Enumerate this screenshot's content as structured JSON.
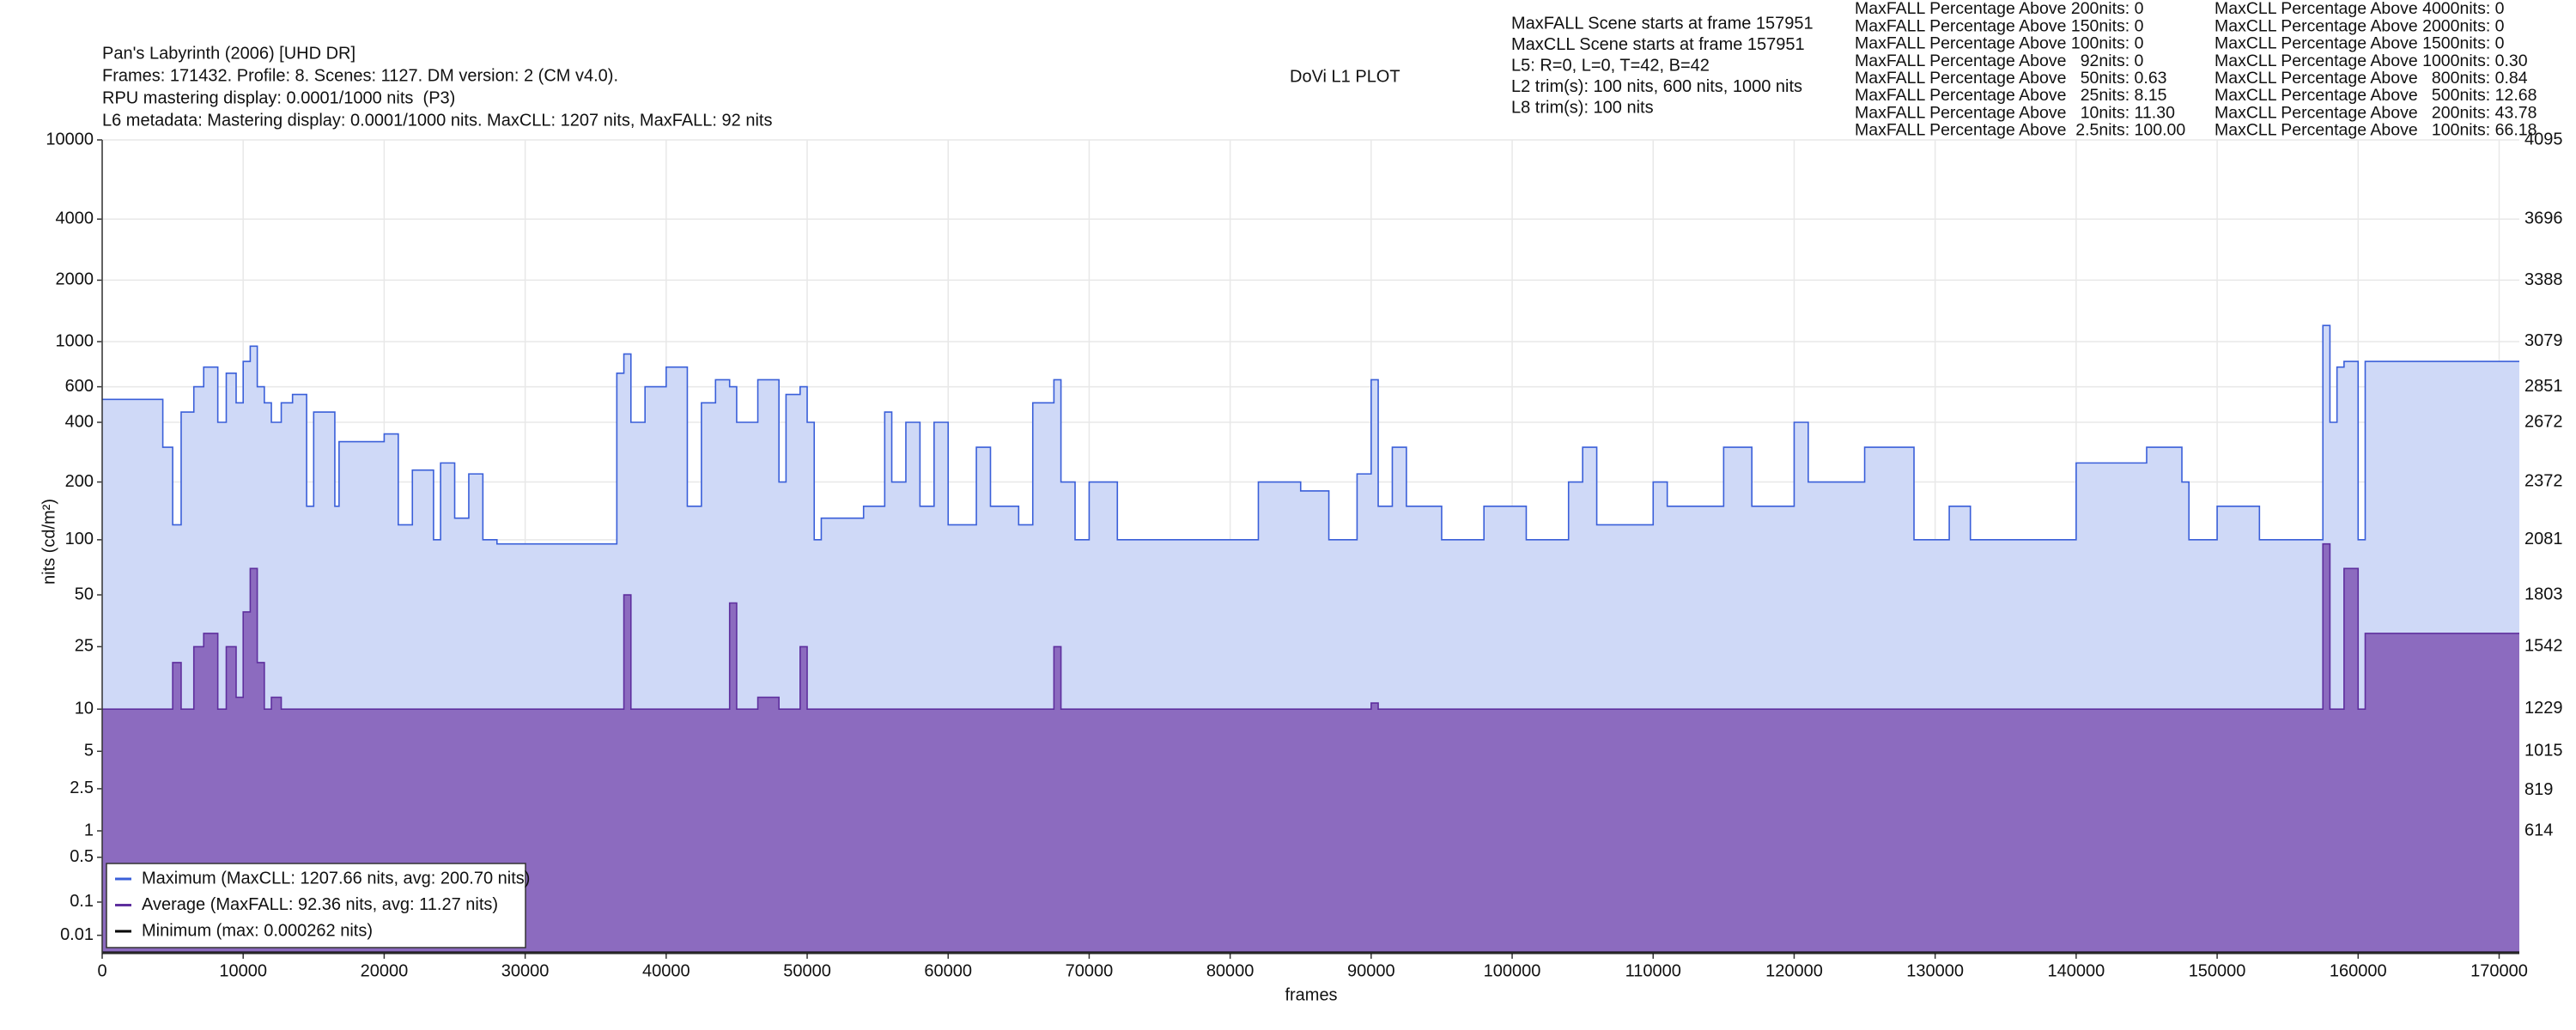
{
  "chart_data": {
    "type": "line",
    "step": "post",
    "yscale": "pq",
    "grid": true,
    "title": "DoVi L1 PLOT",
    "header_lines": [
      "Pan's Labyrinth (2006) [UHD DR]",
      "Frames: 171432. Profile: 8. Scenes: 1127. DM version: 2 (CM v4.0).",
      "RPU mastering display: 0.0001/1000 nits  (P3)",
      "L6 metadata: Mastering display: 0.0001/1000 nits. MaxCLL: 1207 nits, MaxFALL: 92 nits"
    ],
    "info_lines": [
      "MaxFALL Scene starts at frame 157951",
      "MaxCLL Scene starts at frame 157951",
      "L5: R=0, L=0, T=42, B=42",
      "L2 trim(s): 100 nits, 600 nits, 1000 nits",
      "L8 trim(s): 100 nits"
    ],
    "maxfall_stats": [
      "MaxFALL Percentage Above 200nits: 0",
      "MaxFALL Percentage Above 150nits: 0",
      "MaxFALL Percentage Above 100nits: 0",
      "MaxFALL Percentage Above   92nits: 0",
      "MaxFALL Percentage Above   50nits: 0.63",
      "MaxFALL Percentage Above   25nits: 8.15",
      "MaxFALL Percentage Above   10nits: 11.30",
      "MaxFALL Percentage Above  2.5nits: 100.00"
    ],
    "maxcll_stats": [
      "MaxCLL Percentage Above 4000nits: 0",
      "MaxCLL Percentage Above 2000nits: 0",
      "MaxCLL Percentage Above 1500nits: 0",
      "MaxCLL Percentage Above 1000nits: 0.30",
      "MaxCLL Percentage Above   800nits: 0.84",
      "MaxCLL Percentage Above   500nits: 12.68",
      "MaxCLL Percentage Above   200nits: 43.78",
      "MaxCLL Percentage Above   100nits: 66.18"
    ],
    "x_label": "frames",
    "y_label": "nits (cd/m²)",
    "xlim": [
      0,
      171432
    ],
    "xticks": [
      0,
      10000,
      20000,
      30000,
      40000,
      50000,
      60000,
      70000,
      80000,
      90000,
      100000,
      110000,
      120000,
      130000,
      140000,
      150000,
      160000,
      170000
    ],
    "ylim": [
      0,
      10000
    ],
    "yticks": [
      0.01,
      0.1,
      0.5,
      1,
      2.5,
      5,
      10,
      25,
      50,
      100,
      200,
      400,
      600,
      1000,
      2000,
      4000,
      10000
    ],
    "y2lim": [
      0,
      4095
    ],
    "y2ticks": [
      614,
      819,
      1015,
      1229,
      1542,
      1803,
      2081,
      2372,
      2672,
      2851,
      3079,
      3388,
      3696,
      4095
    ],
    "x": [
      0,
      4300,
      5000,
      5600,
      6500,
      7200,
      8200,
      8800,
      9500,
      10000,
      10500,
      11000,
      11500,
      12000,
      12700,
      13500,
      14500,
      15000,
      16500,
      16800,
      20000,
      21000,
      22000,
      23500,
      24000,
      25000,
      26000,
      27000,
      28000,
      36500,
      37000,
      37500,
      38500,
      40000,
      41500,
      42500,
      43500,
      44500,
      45000,
      46500,
      48000,
      48500,
      49500,
      50000,
      50500,
      51000,
      54000,
      55500,
      56000,
      57000,
      58000,
      59000,
      60000,
      62000,
      63000,
      65000,
      66000,
      67500,
      68000,
      69000,
      70000,
      72000,
      81000,
      82000,
      85000,
      87000,
      89000,
      90000,
      90500,
      91500,
      92500,
      95000,
      98000,
      101000,
      104000,
      105000,
      106000,
      110000,
      111000,
      115000,
      117000,
      120000,
      121000,
      125000,
      128500,
      131000,
      132500,
      140000,
      145000,
      147500,
      148000,
      150000,
      153000,
      157500,
      158000,
      158500,
      159000,
      160000,
      160500,
      171432
    ],
    "series": [
      {
        "name": "Maximum (MaxCLL: 1207.66 nits, avg: 200.70 nits)",
        "color": "#3a5fd9",
        "fill": "#cfd9f7",
        "values": [
          520,
          300,
          120,
          450,
          600,
          750,
          400,
          700,
          500,
          800,
          950,
          600,
          500,
          400,
          500,
          550,
          150,
          450,
          150,
          320,
          350,
          120,
          230,
          100,
          250,
          130,
          220,
          100,
          95,
          700,
          870,
          400,
          600,
          750,
          150,
          500,
          650,
          600,
          400,
          650,
          200,
          550,
          600,
          400,
          100,
          130,
          150,
          450,
          200,
          400,
          150,
          400,
          120,
          300,
          150,
          120,
          500,
          650,
          200,
          100,
          200,
          100,
          100,
          200,
          180,
          100,
          220,
          650,
          150,
          300,
          150,
          100,
          150,
          100,
          200,
          300,
          120,
          200,
          150,
          300,
          150,
          400,
          200,
          300,
          100,
          150,
          100,
          250,
          300,
          200,
          100,
          150,
          100,
          1200,
          400,
          750,
          800,
          100,
          800,
          800
        ]
      },
      {
        "name": "Average (MaxFALL: 92.36 nits, avg: 11.27 nits)",
        "color": "#5e2f9e",
        "fill": "#8c6bbf",
        "values": [
          10,
          10,
          20,
          10,
          25,
          30,
          10,
          25,
          12,
          40,
          70,
          20,
          10,
          12,
          10,
          10,
          10,
          10,
          10,
          10,
          10,
          10,
          10,
          10,
          10,
          10,
          10,
          10,
          10,
          10,
          50,
          10,
          10,
          10,
          10,
          10,
          10,
          45,
          10,
          12,
          10,
          10,
          25,
          10,
          10,
          10,
          10,
          10,
          10,
          10,
          10,
          10,
          10,
          10,
          10,
          10,
          10,
          25,
          10,
          10,
          10,
          10,
          10,
          10,
          10,
          10,
          10,
          11,
          10,
          10,
          10,
          10,
          10,
          10,
          10,
          10,
          10,
          10,
          10,
          10,
          10,
          10,
          10,
          10,
          10,
          10,
          10,
          10,
          10,
          10,
          10,
          10,
          10,
          95,
          10,
          10,
          70,
          10,
          30,
          30
        ]
      },
      {
        "name": "Minimum (max: 0.000262 nits)",
        "color": "#000000",
        "x": [
          0,
          171432
        ],
        "values": [
          0,
          0
        ]
      }
    ]
  }
}
